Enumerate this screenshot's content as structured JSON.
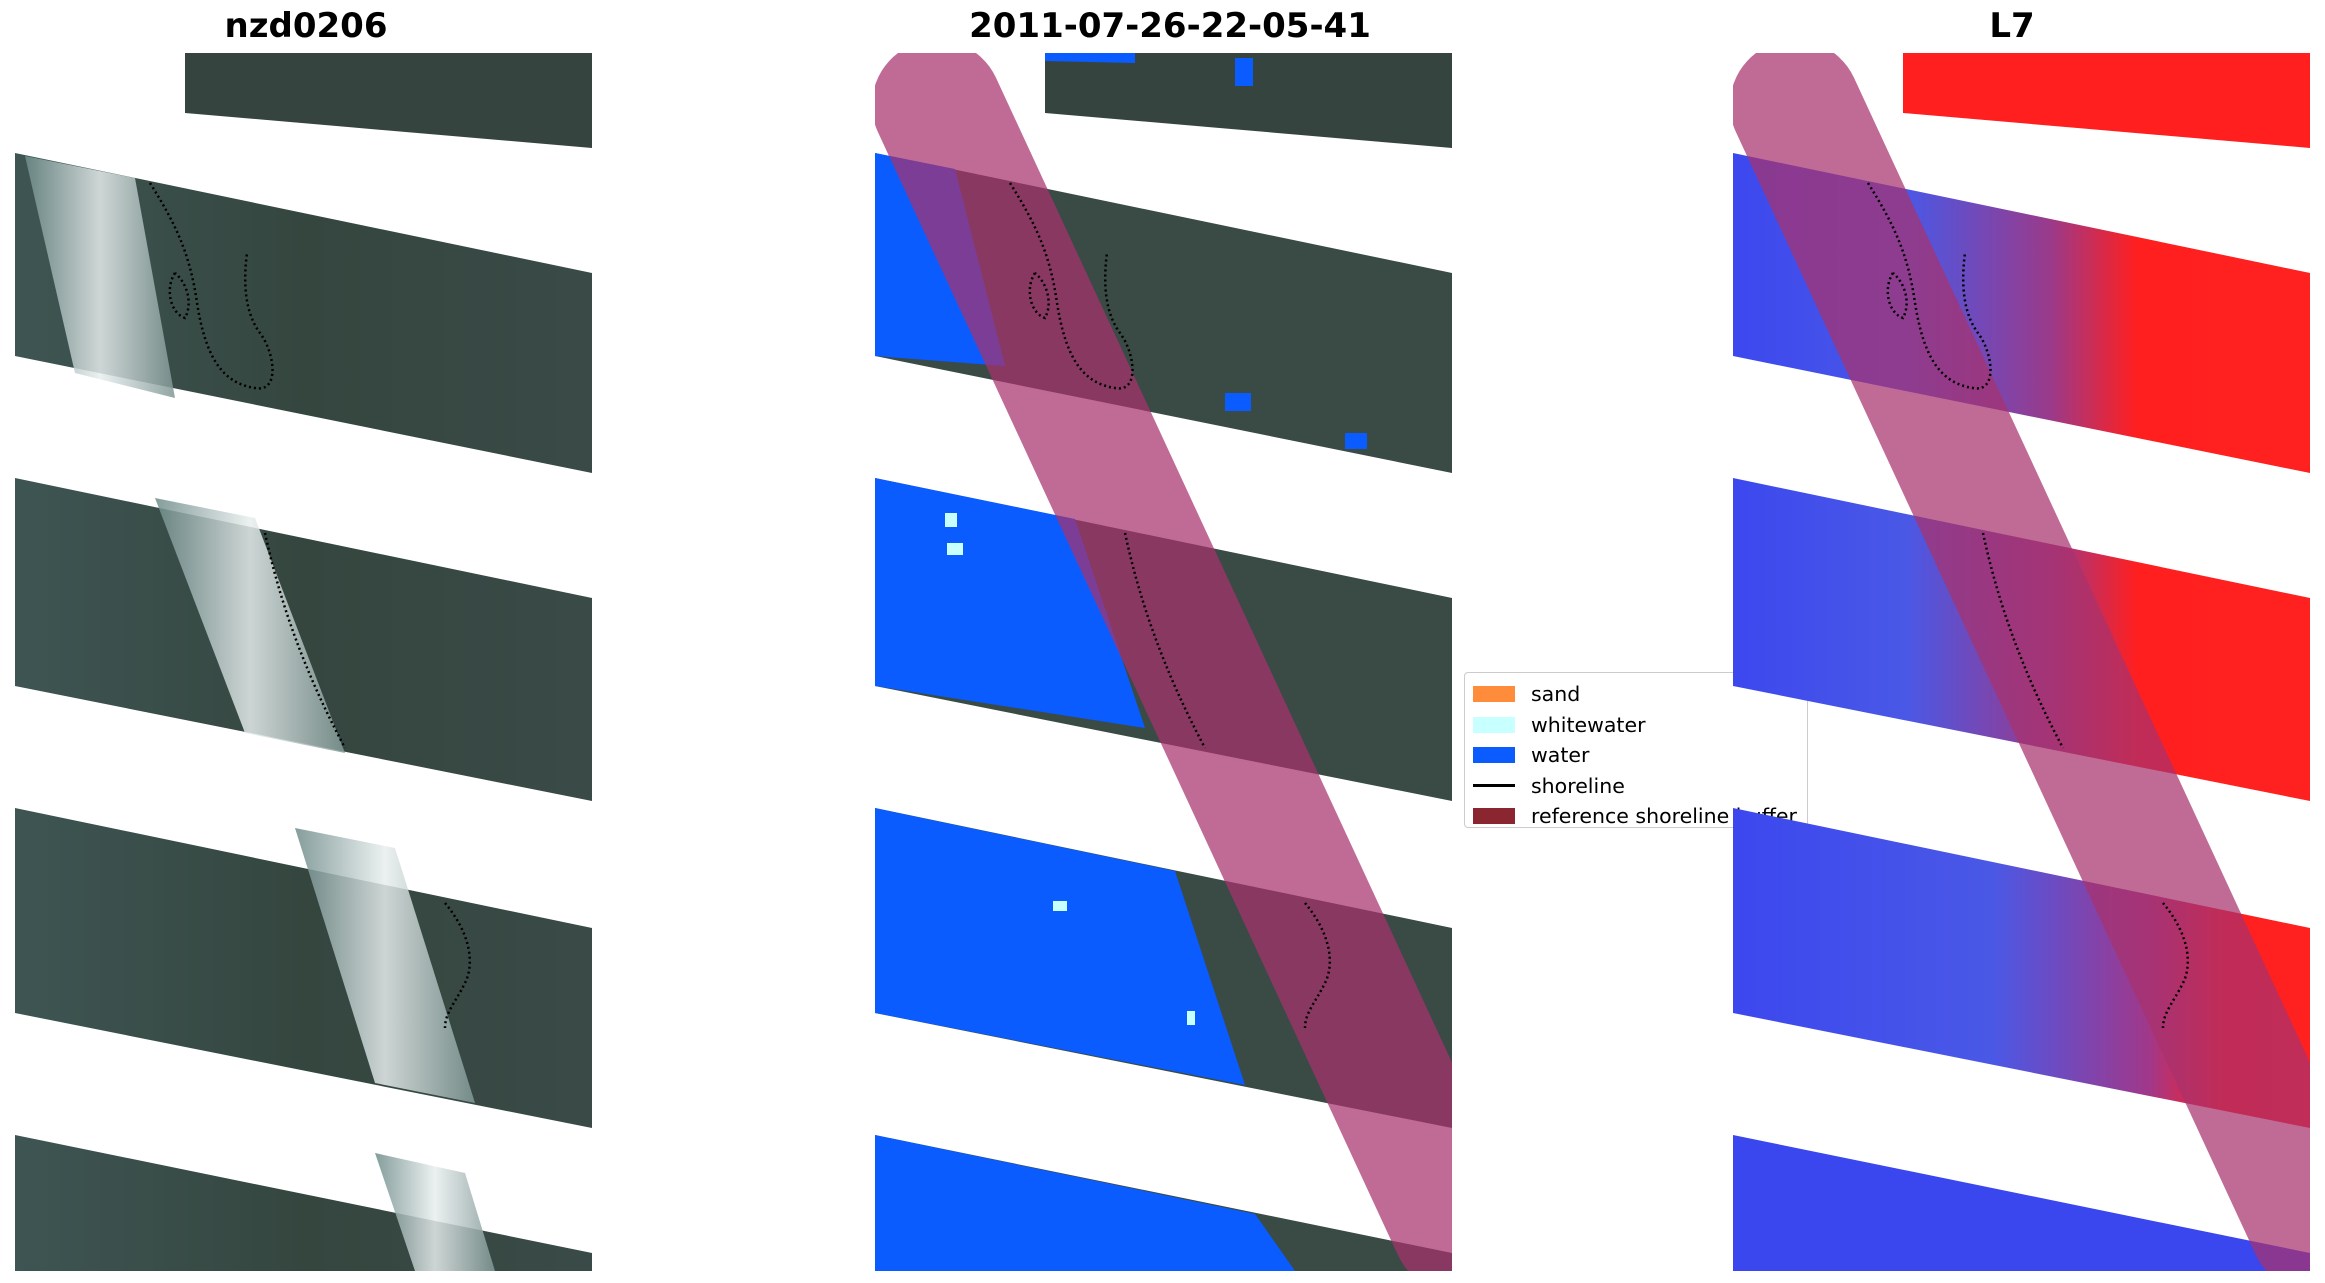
{
  "panels": [
    {
      "title": "nzd0206"
    },
    {
      "title": "2011-07-26-22-05-41"
    },
    {
      "title": "L7"
    }
  ],
  "legend": {
    "items": [
      {
        "label": "sand",
        "color": "#ff8c3a",
        "style": "patch"
      },
      {
        "label": "whitewater",
        "color": "#c8ffff",
        "style": "patch"
      },
      {
        "label": "water",
        "color": "#0a5cff",
        "style": "patch"
      },
      {
        "label": "shoreline",
        "color": "#000000",
        "style": "line"
      },
      {
        "label": "reference shoreline buffer",
        "color": "#8b2530",
        "style": "patch"
      }
    ]
  },
  "colors": {
    "land_rgb": "#3b4b46",
    "vegetation_rgb": "#33433a",
    "surf_white": "#e6ecec",
    "water_class": "#0a5cff",
    "buffer_overlay": "#a8326e",
    "ndvi_positive": "#ff1f1f",
    "ndvi_negative": "#3a46ee"
  }
}
